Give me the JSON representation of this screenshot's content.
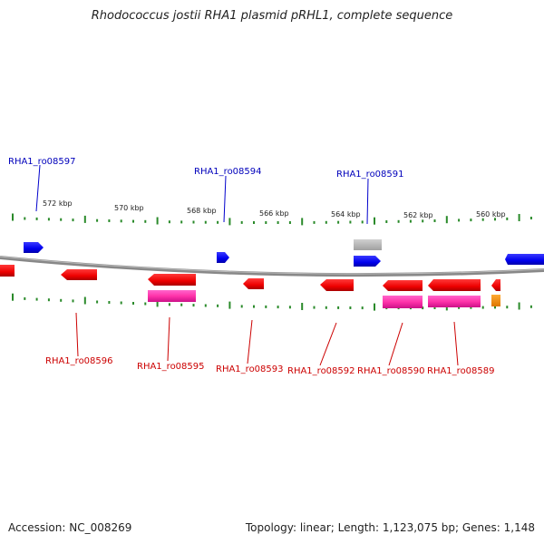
{
  "title": "Rhodococcus jostii RHA1 plasmid pRHL1, complete sequence",
  "footer": {
    "accession": "Accession: NC_008269",
    "summary": "Topology: linear; Length: 1,123,075 bp; Genes: 1,148"
  },
  "colors": {
    "forward_gene": "#0000ee",
    "reverse_gene": "#ee0000",
    "rna_or_other": "#ff33aa",
    "misc": "#ff8800",
    "neutral": "#b0b0b0",
    "backbone": "#888888",
    "ticks": "#2a8a2a"
  },
  "scale_ticks_kbp": [
    "572 kbp",
    "570 kbp",
    "568 kbp",
    "566 kbp",
    "564 kbp",
    "562 kbp",
    "560 kbp"
  ],
  "gene_labels_top": [
    "RHA1_ro08597",
    "RHA1_ro08594",
    "RHA1_ro08591"
  ],
  "gene_labels_bottom": [
    "RHA1_ro08596",
    "RHA1_ro08595",
    "RHA1_ro08593",
    "RHA1_ro08592",
    "RHA1_ro08590",
    "RHA1_ro08589"
  ]
}
